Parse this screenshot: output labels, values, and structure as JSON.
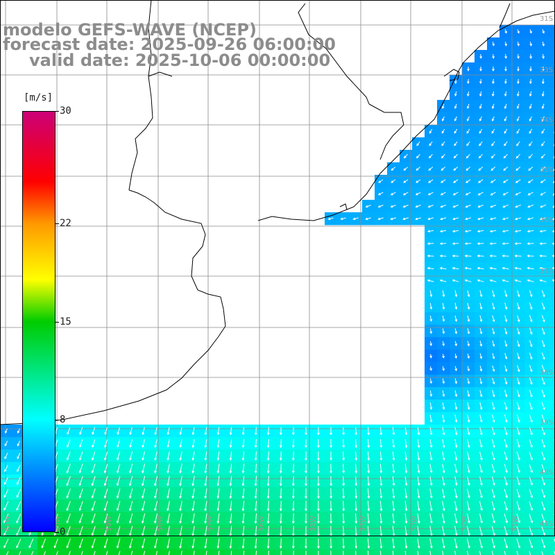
{
  "title": {
    "line1": "modelo GEFS-WAVE (NCEP)",
    "line2": "forecast date: 2025-09-26 06:00:00",
    "line3": "valid date: 2025-10-06 00:00:00"
  },
  "colorbar": {
    "unit": "[m/s]",
    "ticks": [
      "30",
      "22",
      "15",
      "8",
      "0"
    ],
    "tick_values": [
      30,
      22,
      15,
      8,
      0
    ],
    "range": [
      0,
      30
    ],
    "stops": [
      {
        "value": 0,
        "color": "#0000ff"
      },
      {
        "value": 8,
        "color": "#00ffff"
      },
      {
        "value": 15,
        "color": "#00cc00"
      },
      {
        "value": 18,
        "color": "#ffff00"
      },
      {
        "value": 22,
        "color": "#ff9900"
      },
      {
        "value": 25,
        "color": "#ff0000"
      },
      {
        "value": 30,
        "color": "#cc0077"
      }
    ]
  },
  "map": {
    "land_color": "#ffffff",
    "grid_color": "#8a8a8a",
    "coast_color": "#000000",
    "arrow_color": "#ffffff",
    "lat_labels": [
      "31S",
      "33S",
      "34S",
      "35S",
      "36S",
      "37S",
      "38S",
      "39S",
      "40S",
      "41S"
    ],
    "lon_labels": [
      "61W",
      "60W",
      "59W",
      "58W",
      "57W",
      "56W",
      "55W",
      "54W",
      "53W",
      "52W",
      "51W"
    ]
  }
}
